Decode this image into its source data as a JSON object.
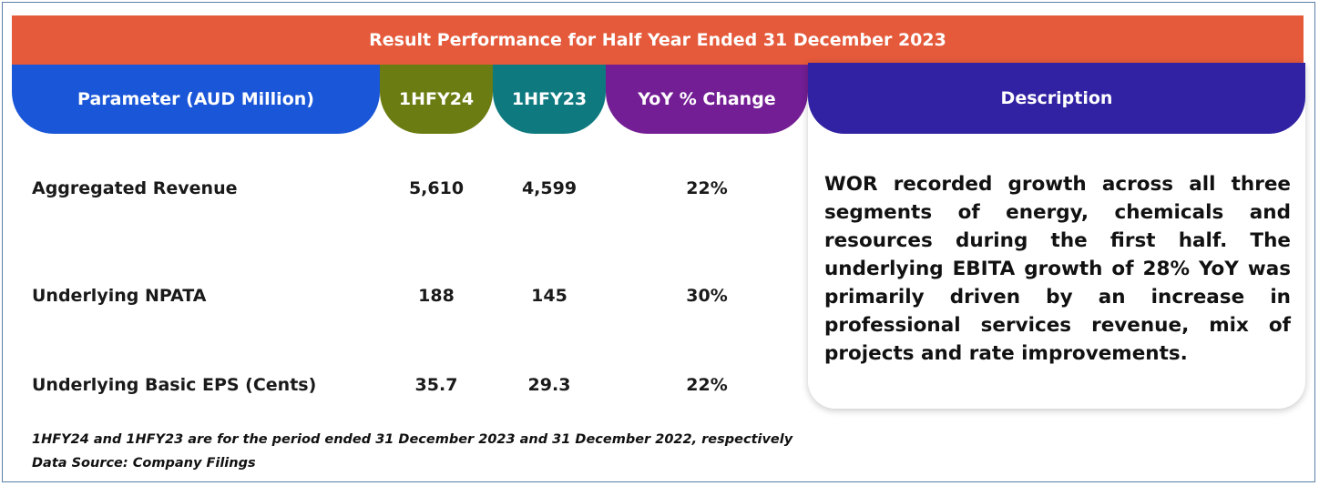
{
  "title": "Result Performance for Half Year Ended 31 December 2023",
  "columns": {
    "parameter": "Parameter (AUD Million)",
    "fy24": "1HFY24",
    "fy23": "1HFY23",
    "yoy": "YoY % Change",
    "description": "Description"
  },
  "rows": [
    {
      "parameter": "Aggregated Revenue",
      "fy24": "5,610",
      "fy23": "4,599",
      "yoy": "22%"
    },
    {
      "parameter": "Underlying NPATA",
      "fy24": "188",
      "fy23": "145",
      "yoy": "30%"
    },
    {
      "parameter": "Underlying Basic EPS (Cents)",
      "fy24": "35.7",
      "fy23": "29.3",
      "yoy": "22%"
    }
  ],
  "description": "WOR recorded growth across all three segments of energy, chemicals and resources during the first half. The underlying EBITA growth of 28% YoY was primarily driven by an increase in professional services revenue, mix of projects and rate improvements.",
  "footnotes": {
    "period_note": "1HFY24 and 1HFY23 are for the period ended 31 December 2023 and 31 December 2022, respectively",
    "source": "Data Source: Company Filings"
  },
  "colors": {
    "banner": "#e45a3b",
    "parameter_header": "#1a56d8",
    "fy24_header": "#6b7d12",
    "fy23_header": "#0e7a80",
    "yoy_header": "#731e94",
    "description_header": "#3122a3"
  }
}
